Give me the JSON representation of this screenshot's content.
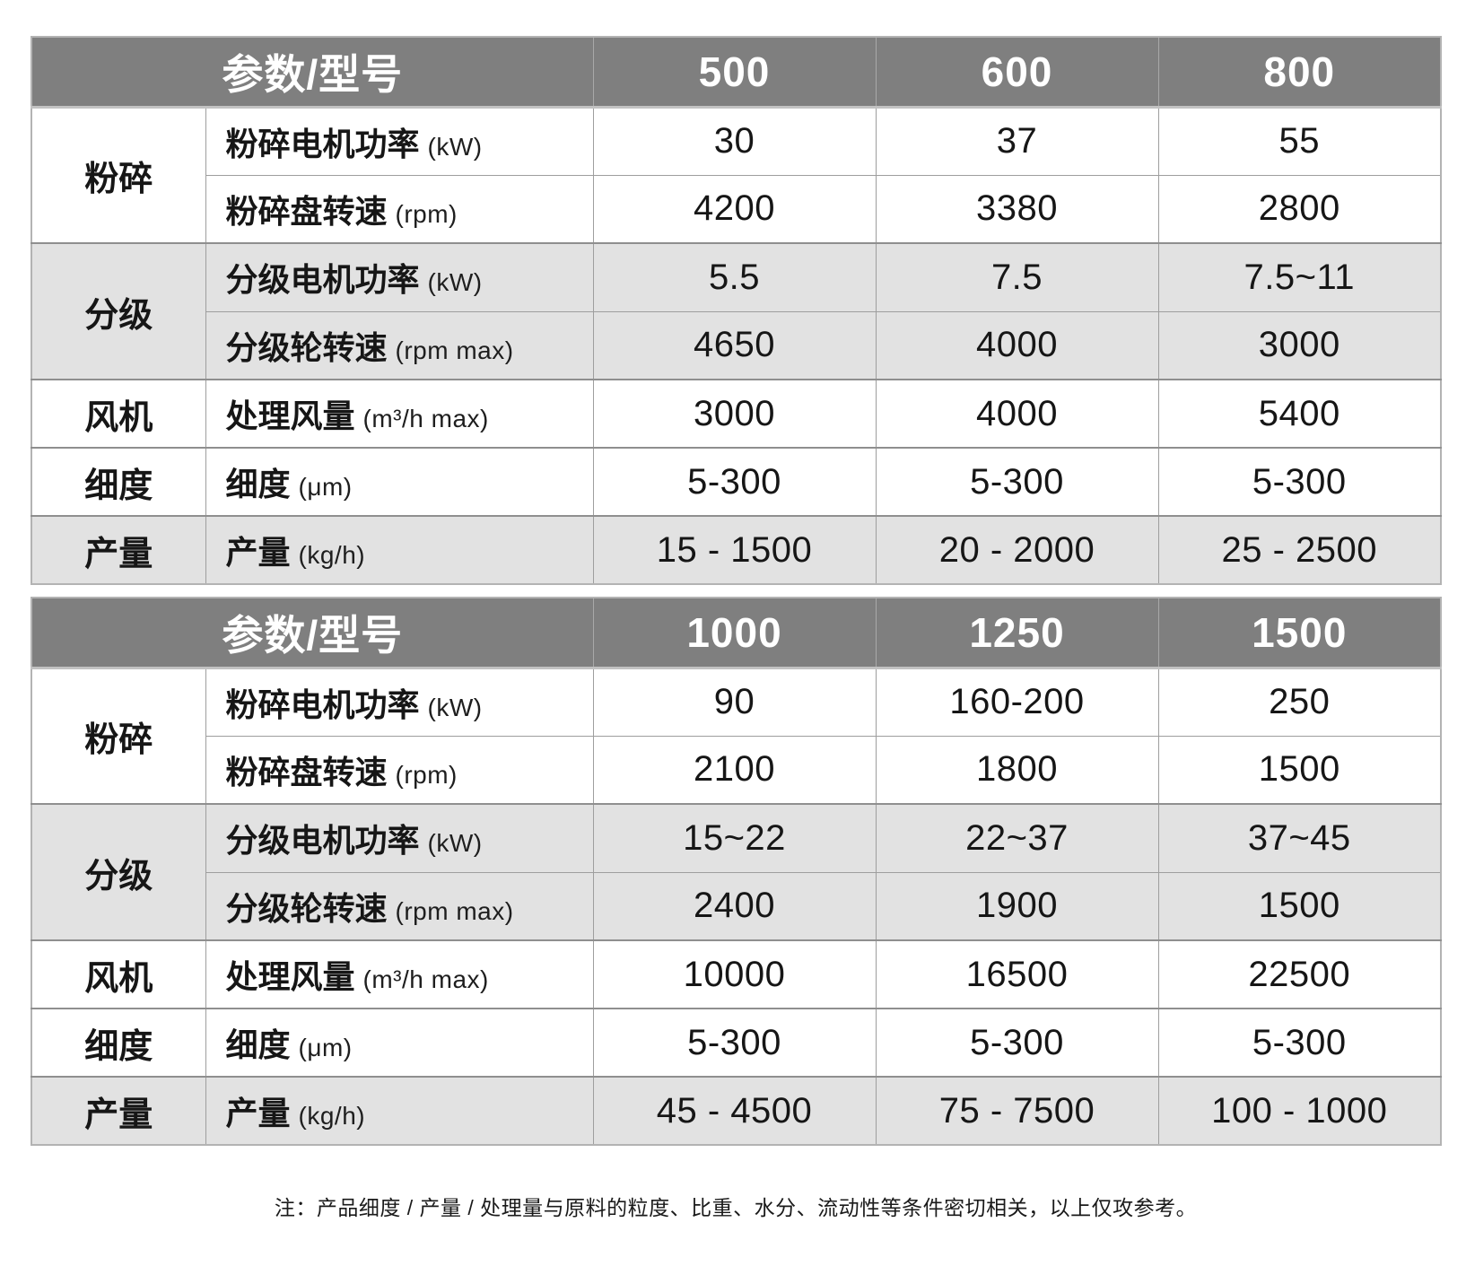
{
  "colors": {
    "header_bg": "#7f7f7f",
    "header_text": "#ffffff",
    "band_bg": "#e2e2e2",
    "row_bg": "#ffffff",
    "border": "#9e9e9e",
    "text": "#161616"
  },
  "tables": [
    {
      "header": {
        "param_label": "参数/型号",
        "models": [
          "500",
          "600",
          "800"
        ]
      },
      "groups": [
        {
          "category": "粉碎",
          "shaded": false,
          "rows": [
            {
              "label": "粉碎电机功率",
              "unit": "(kW)",
              "values": [
                "30",
                "37",
                "55"
              ]
            },
            {
              "label": "粉碎盘转速",
              "unit": "(rpm)",
              "values": [
                "4200",
                "3380",
                "2800"
              ]
            }
          ]
        },
        {
          "category": "分级",
          "shaded": true,
          "rows": [
            {
              "label": "分级电机功率",
              "unit": "(kW)",
              "values": [
                "5.5",
                "7.5",
                "7.5~11"
              ]
            },
            {
              "label": "分级轮转速",
              "unit": "(rpm max)",
              "values": [
                "4650",
                "4000",
                "3000"
              ]
            }
          ]
        },
        {
          "category": "风机",
          "shaded": false,
          "rows": [
            {
              "label": "处理风量",
              "unit": "(m³/h max)",
              "values": [
                "3000",
                "4000",
                "5400"
              ]
            }
          ]
        },
        {
          "category": "细度",
          "shaded": false,
          "rows": [
            {
              "label": "细度",
              "unit": "(μm)",
              "values": [
                "5-300",
                "5-300",
                "5-300"
              ]
            }
          ]
        },
        {
          "category": "产量",
          "shaded": true,
          "rows": [
            {
              "label": "产量",
              "unit": "(kg/h)",
              "values": [
                "15 - 1500",
                "20 - 2000",
                "25 - 2500"
              ]
            }
          ]
        }
      ]
    },
    {
      "header": {
        "param_label": "参数/型号",
        "models": [
          "1000",
          "1250",
          "1500"
        ]
      },
      "groups": [
        {
          "category": "粉碎",
          "shaded": false,
          "rows": [
            {
              "label": "粉碎电机功率",
              "unit": "(kW)",
              "values": [
                "90",
                "160-200",
                "250"
              ]
            },
            {
              "label": "粉碎盘转速",
              "unit": "(rpm)",
              "values": [
                "2100",
                "1800",
                "1500"
              ]
            }
          ]
        },
        {
          "category": "分级",
          "shaded": true,
          "rows": [
            {
              "label": "分级电机功率",
              "unit": "(kW)",
              "values": [
                "15~22",
                "22~37",
                "37~45"
              ]
            },
            {
              "label": "分级轮转速",
              "unit": "(rpm max)",
              "values": [
                "2400",
                "1900",
                "1500"
              ]
            }
          ]
        },
        {
          "category": "风机",
          "shaded": false,
          "rows": [
            {
              "label": "处理风量",
              "unit": "(m³/h max)",
              "values": [
                "10000",
                "16500",
                "22500"
              ]
            }
          ]
        },
        {
          "category": "细度",
          "shaded": false,
          "rows": [
            {
              "label": "细度",
              "unit": "(μm)",
              "values": [
                "5-300",
                "5-300",
                "5-300"
              ]
            }
          ]
        },
        {
          "category": "产量",
          "shaded": true,
          "rows": [
            {
              "label": "产量",
              "unit": "(kg/h)",
              "values": [
                "45 - 4500",
                "75 - 7500",
                "100 - 1000"
              ]
            }
          ]
        }
      ]
    }
  ],
  "note": "注：产品细度 / 产量 / 处理量与原料的粒度、比重、水分、流动性等条件密切相关，以上仅攻参考。"
}
